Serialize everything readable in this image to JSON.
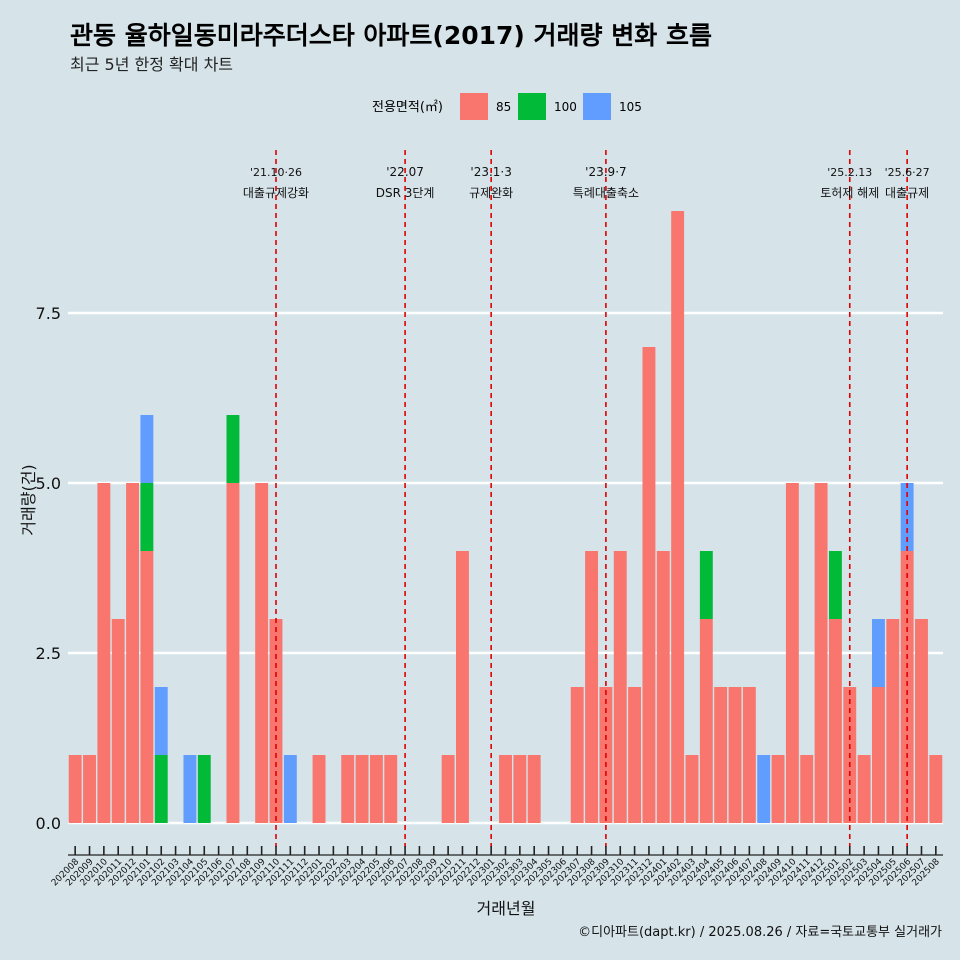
{
  "title": "관동 율하일동미라주더스타 아파트(2017) 거래량 변화 흐름",
  "subtitle": "최근 5년 한정 확대 차트",
  "caption": "©디아파트(dapt.kr) / 2025.08.26 / 자료=국토교통부 실거래가",
  "legend_title": "전용면적(㎡)",
  "colors": {
    "85": "#F8766D",
    "100": "#00BA38",
    "105": "#619CFF",
    "background": "#d6e4ea",
    "event_line": "#e00000"
  },
  "chart_data": {
    "type": "bar",
    "stacked": true,
    "xlabel": "거래년월",
    "ylabel": "거래량(건)",
    "ylim": [
      -0.25,
      9
    ],
    "yticks": [
      0.0,
      2.5,
      5.0,
      7.5
    ],
    "ytick_labels": [
      "0.0",
      "2.5",
      "5.0",
      "7.5"
    ],
    "grid": "horizontal",
    "legend_position": "top",
    "categories": [
      "202008",
      "202009",
      "202010",
      "202011",
      "202012",
      "202101",
      "202102",
      "202103",
      "202104",
      "202105",
      "202106",
      "202107",
      "202108",
      "202109",
      "202110",
      "202111",
      "202112",
      "202201",
      "202202",
      "202203",
      "202204",
      "202205",
      "202206",
      "202207",
      "202208",
      "202209",
      "202210",
      "202211",
      "202212",
      "202301",
      "202302",
      "202303",
      "202304",
      "202305",
      "202306",
      "202307",
      "202308",
      "202309",
      "202310",
      "202311",
      "202312",
      "202401",
      "202402",
      "202403",
      "202404",
      "202405",
      "202406",
      "202407",
      "202408",
      "202409",
      "202410",
      "202411",
      "202412",
      "202501",
      "202502",
      "202503",
      "202504",
      "202505",
      "202506",
      "202507",
      "202508"
    ],
    "series": [
      {
        "name": "85",
        "values": [
          1,
          1,
          5,
          3,
          5,
          4,
          0,
          0,
          0,
          0,
          0,
          5,
          0,
          5,
          3,
          0,
          0,
          1,
          0,
          1,
          1,
          1,
          1,
          0,
          0,
          0,
          1,
          4,
          0,
          0,
          1,
          1,
          1,
          0,
          0,
          2,
          4,
          2,
          4,
          2,
          7,
          4,
          9,
          1,
          3,
          2,
          2,
          2,
          0,
          1,
          5,
          1,
          5,
          3,
          2,
          1,
          2,
          3,
          4,
          3,
          1
        ]
      },
      {
        "name": "100",
        "values": [
          0,
          0,
          0,
          0,
          0,
          1,
          1,
          0,
          0,
          1,
          0,
          1,
          0,
          0,
          0,
          0,
          0,
          0,
          0,
          0,
          0,
          0,
          0,
          0,
          0,
          0,
          0,
          0,
          0,
          0,
          0,
          0,
          0,
          0,
          0,
          0,
          0,
          0,
          0,
          0,
          0,
          0,
          0,
          0,
          1,
          0,
          0,
          0,
          0,
          0,
          0,
          0,
          0,
          1,
          0,
          0,
          0,
          0,
          0,
          0,
          0
        ]
      },
      {
        "name": "105",
        "values": [
          0,
          0,
          0,
          0,
          0,
          1,
          1,
          0,
          1,
          0,
          0,
          0,
          0,
          0,
          0,
          1,
          0,
          0,
          0,
          0,
          0,
          0,
          0,
          0,
          0,
          0,
          0,
          0,
          0,
          0,
          0,
          0,
          0,
          0,
          0,
          0,
          0,
          0,
          0,
          0,
          0,
          0,
          0,
          0,
          0,
          0,
          0,
          0,
          1,
          0,
          0,
          0,
          0,
          0,
          0,
          0,
          1,
          0,
          1,
          0,
          0
        ]
      }
    ],
    "events": [
      {
        "x": "202110",
        "date": "'21.10·26",
        "label": "대출규제강화"
      },
      {
        "x": "202207",
        "date": "'22.07",
        "label": "DSR 3단계"
      },
      {
        "x": "202301",
        "date": "'23.1·3",
        "label": "규제완화"
      },
      {
        "x": "202309",
        "date": "'23.9·7",
        "label": "특례대출축소"
      },
      {
        "x": "202502",
        "date": "'25.2.13",
        "label": "토허제 해제"
      },
      {
        "x": "202506",
        "date": "'25.6·27",
        "label": "대출규제"
      }
    ]
  }
}
